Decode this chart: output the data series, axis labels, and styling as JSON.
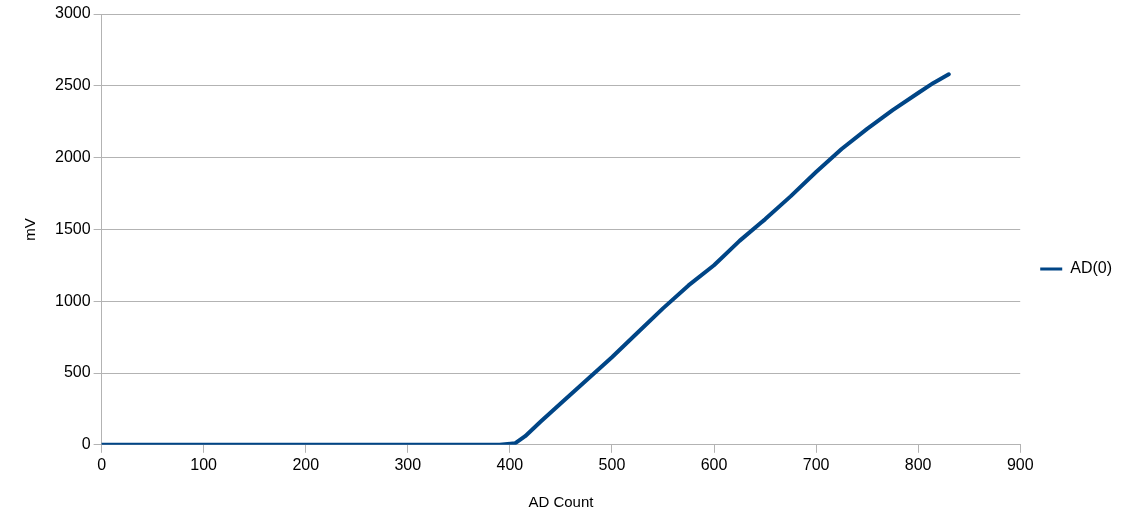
{
  "chart_data": {
    "type": "line",
    "xlabel": "AD Count",
    "ylabel": "mV",
    "xlim": [
      0,
      900
    ],
    "xticks": [
      0,
      100,
      200,
      300,
      400,
      500,
      600,
      700,
      800,
      900
    ],
    "ylim": [
      0,
      3000
    ],
    "yticks": [
      0,
      500,
      1000,
      1500,
      2000,
      2500,
      3000
    ],
    "grid": "y",
    "legend": "right",
    "marker": "none",
    "line_style": "solid",
    "series": [
      {
        "name": "AD(0)",
        "color": "#004586",
        "x": [
          0,
          100,
          200,
          300,
          390,
          405,
          415,
          430,
          450,
          475,
          500,
          525,
          550,
          575,
          600,
          625,
          650,
          675,
          700,
          725,
          750,
          775,
          800,
          815,
          830
        ],
        "values": [
          0,
          0,
          0,
          0,
          0,
          10,
          60,
          160,
          290,
          450,
          610,
          780,
          950,
          1110,
          1250,
          1420,
          1570,
          1730,
          1900,
          2060,
          2200,
          2330,
          2450,
          2520,
          2580
        ]
      }
    ]
  }
}
